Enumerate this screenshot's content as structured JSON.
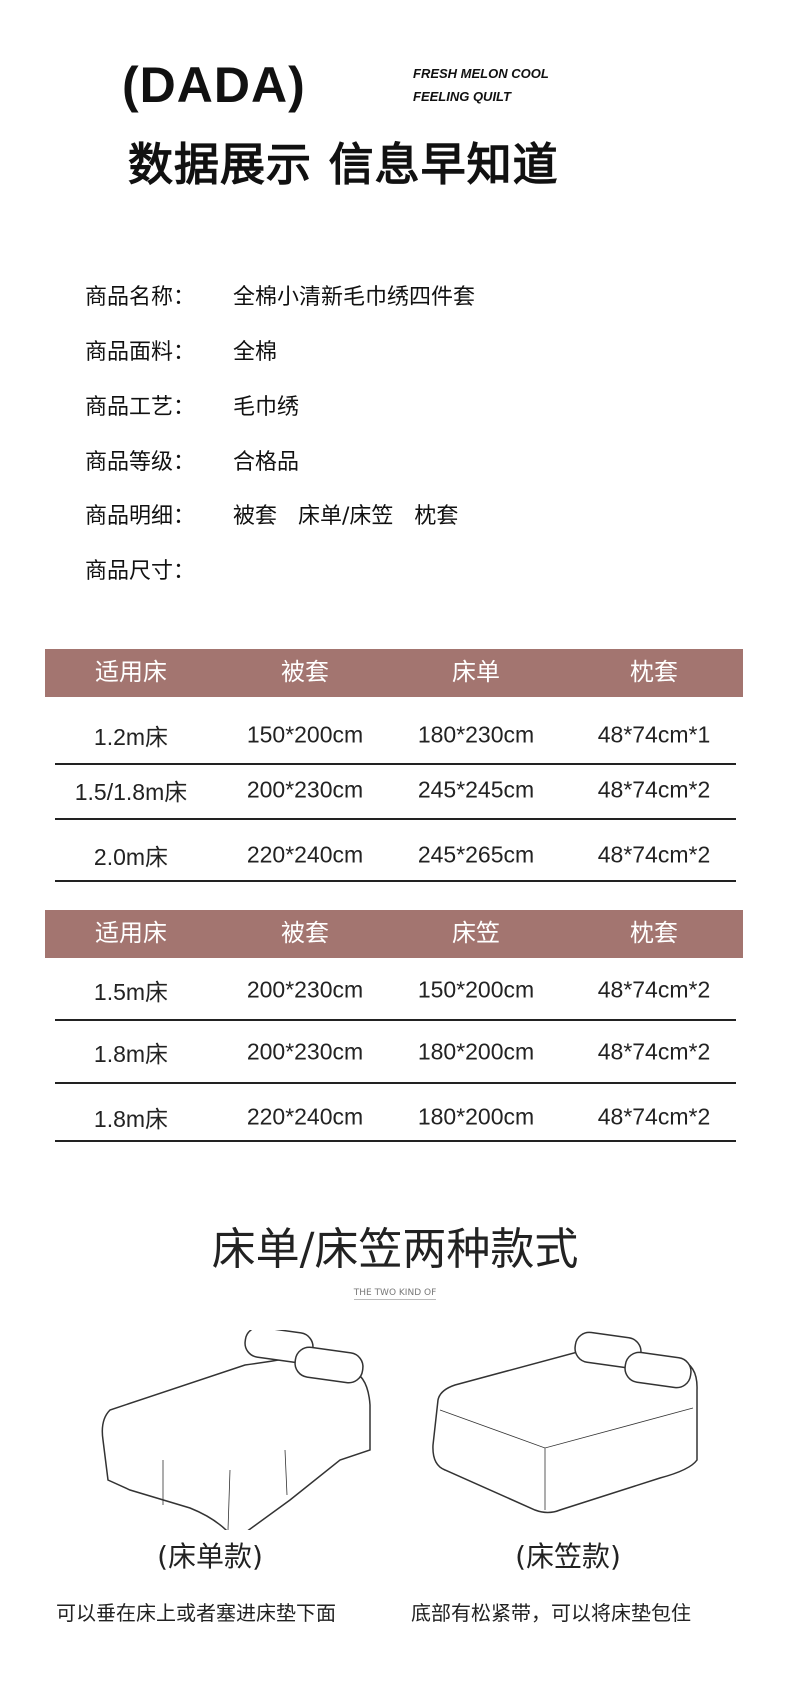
{
  "header": {
    "brand": "(DADA)",
    "tagline_1": "FRESH MELON COOL",
    "tagline_2": "FEELING QUILT",
    "headline": "数据展示 信息早知道"
  },
  "info": [
    {
      "label": "商品名称：",
      "value": "全棉小清新毛巾绣四件套"
    },
    {
      "label": "商品面料：",
      "value": "全棉"
    },
    {
      "label": "商品工艺：",
      "value": "毛巾绣"
    },
    {
      "label": "商品等级：",
      "value": "合格品"
    },
    {
      "label": "商品明细：",
      "value": "被套   床单/床笠   枕套"
    },
    {
      "label": "商品尺寸：",
      "value": ""
    }
  ],
  "table_sheet": {
    "headers": [
      "适用床",
      "被套",
      "床单",
      "枕套"
    ],
    "rows": [
      [
        "1.2m床",
        "150*200cm",
        "180*230cm",
        "48*74cm*1"
      ],
      [
        "1.5/1.8m床",
        "200*230cm",
        "245*245cm",
        "48*74cm*2"
      ],
      [
        "2.0m床",
        "220*240cm",
        "245*265cm",
        "48*74cm*2"
      ]
    ]
  },
  "table_fitted": {
    "headers": [
      "适用床",
      "被套",
      "床笠",
      "枕套"
    ],
    "rows": [
      [
        "1.5m床",
        "200*230cm",
        "150*200cm",
        "48*74cm*2"
      ],
      [
        "1.8m床",
        "200*230cm",
        "180*200cm",
        "48*74cm*2"
      ],
      [
        "1.8m床",
        "220*240cm",
        "180*200cm",
        "48*74cm*2"
      ]
    ]
  },
  "styles": {
    "title": "床单/床笠两种款式",
    "subtitle": "THE TWO KIND OF",
    "items": [
      {
        "caption": "(床单款)",
        "desc": "可以垂在床上或者塞进床垫下面"
      },
      {
        "caption": "(床笠款)",
        "desc": "底部有松紧带，可以将床垫包住"
      }
    ]
  },
  "colors": {
    "table_header": "#a37570"
  }
}
